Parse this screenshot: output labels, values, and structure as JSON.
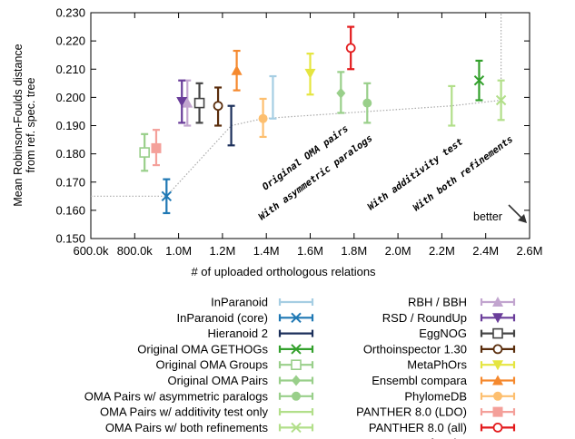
{
  "chart_data": {
    "type": "scatter",
    "title": "",
    "xlabel": "# of uploaded orthologous relations",
    "ylabel": "Mean Robinson-Foulds distance\nfrom ref. spec. tree",
    "xlim": [
      600000,
      2600000
    ],
    "ylim": [
      0.15,
      0.23
    ],
    "x_ticks": [
      "600.0k",
      "800.0k",
      "1.0M",
      "1.2M",
      "1.4M",
      "1.6M",
      "1.8M",
      "2.0M",
      "2.2M",
      "2.4M",
      "2.6M"
    ],
    "y_ticks": [
      "0.150",
      "0.160",
      "0.170",
      "0.180",
      "0.190",
      "0.200",
      "0.210",
      "0.220",
      "0.230"
    ],
    "grid": false,
    "legend_placement": "below",
    "annotations": {
      "better": "better",
      "original_oma_pairs": "Original OMA pairs",
      "asymmetric_paralogs": "With asymmetric paralogs",
      "additivity_test": "With additivity test",
      "both_refinements": "With both refinements"
    },
    "series": [
      {
        "name": "InParanoid",
        "color": "#a6cee3",
        "marker": "bar",
        "points": [
          {
            "x": 1430000,
            "y": 0.2,
            "lo": 0.1925,
            "hi": 0.2075
          }
        ]
      },
      {
        "name": "InParanoid (core)",
        "color": "#1f78b4",
        "marker": "x",
        "points": [
          {
            "x": 945000,
            "y": 0.165,
            "lo": 0.159,
            "hi": 0.171
          }
        ]
      },
      {
        "name": "Hieranoid 2",
        "color": "#1b2f5a",
        "marker": "bar",
        "points": [
          {
            "x": 1240000,
            "y": 0.19,
            "lo": 0.183,
            "hi": 0.197
          }
        ]
      },
      {
        "name": "Original OMA GETHOGs",
        "color": "#33a02c",
        "marker": "x",
        "points": [
          {
            "x": 2370000,
            "y": 0.206,
            "lo": 0.199,
            "hi": 0.213
          }
        ]
      },
      {
        "name": "Original OMA Groups",
        "color": "#99cf8a",
        "marker": "open-square",
        "points": [
          {
            "x": 845000,
            "y": 0.1805,
            "lo": 0.174,
            "hi": 0.187
          }
        ]
      },
      {
        "name": "Original OMA Pairs",
        "color": "#99cf8a",
        "marker": "diamond",
        "points": [
          {
            "x": 1740000,
            "y": 0.2015,
            "lo": 0.1945,
            "hi": 0.209
          }
        ]
      },
      {
        "name": "OMA Pairs w/ asymmetric paralogs",
        "color": "#99cf8a",
        "marker": "dot",
        "points": [
          {
            "x": 1860000,
            "y": 0.198,
            "lo": 0.191,
            "hi": 0.205
          }
        ]
      },
      {
        "name": "OMA Pairs w/ additivity test only",
        "color": "#b2df8a",
        "marker": "bar",
        "points": [
          {
            "x": 2245000,
            "y": 0.197,
            "lo": 0.19,
            "hi": 0.204
          }
        ]
      },
      {
        "name": "OMA Pairs w/ both refinements",
        "color": "#b2df8a",
        "marker": "x",
        "points": [
          {
            "x": 2470000,
            "y": 0.199,
            "lo": 0.192,
            "hi": 0.206
          }
        ]
      },
      {
        "name": "RBH / BBH",
        "color": "#c2a5cf",
        "marker": "triangle-up",
        "points": [
          {
            "x": 1040000,
            "y": 0.198,
            "lo": 0.19,
            "hi": 0.206
          }
        ]
      },
      {
        "name": "RSD / RoundUp",
        "color": "#6a3d9a",
        "marker": "triangle-down",
        "points": [
          {
            "x": 1015000,
            "y": 0.1985,
            "lo": 0.191,
            "hi": 0.206
          }
        ]
      },
      {
        "name": "EggNOG",
        "color": "#444444",
        "marker": "open-square",
        "points": [
          {
            "x": 1095000,
            "y": 0.198,
            "lo": 0.191,
            "hi": 0.205
          }
        ]
      },
      {
        "name": "Orthoinspector 1.30",
        "color": "#5a2d0c",
        "marker": "open-circle",
        "points": [
          {
            "x": 1180000,
            "y": 0.197,
            "lo": 0.19,
            "hi": 0.2035
          }
        ]
      },
      {
        "name": "MetaPhOrs",
        "color": "#e5e540",
        "marker": "triangle-down",
        "points": [
          {
            "x": 1600000,
            "y": 0.2085,
            "lo": 0.201,
            "hi": 0.2155
          }
        ]
      },
      {
        "name": "Ensembl compara",
        "color": "#f5892e",
        "marker": "triangle-up",
        "points": [
          {
            "x": 1265000,
            "y": 0.2095,
            "lo": 0.2025,
            "hi": 0.2165
          }
        ]
      },
      {
        "name": "PhylomeDB",
        "color": "#fdbf6f",
        "marker": "dot",
        "points": [
          {
            "x": 1385000,
            "y": 0.1925,
            "lo": 0.186,
            "hi": 0.1995
          }
        ]
      },
      {
        "name": "PANTHER 8.0 (LDO)",
        "color": "#f4a09a",
        "marker": "square",
        "points": [
          {
            "x": 898000,
            "y": 0.182,
            "lo": 0.176,
            "hi": 0.1885
          }
        ]
      },
      {
        "name": "PANTHER 8.0 (all)",
        "color": "#e31a1c",
        "marker": "open-circle",
        "points": [
          {
            "x": 1785000,
            "y": 0.2175,
            "lo": 0.21,
            "hi": 0.225
          }
        ]
      },
      {
        "name": "pareto frontier",
        "color": "#aaaaaa",
        "marker": "dotted-line",
        "points": [
          {
            "x": 600000,
            "y": 0.165
          },
          {
            "x": 945000,
            "y": 0.165
          },
          {
            "x": 1240000,
            "y": 0.19
          },
          {
            "x": 1385000,
            "y": 0.1925
          },
          {
            "x": 2245000,
            "y": 0.197
          },
          {
            "x": 2470000,
            "y": 0.199
          },
          {
            "x": 2470000,
            "y": 0.23
          }
        ]
      }
    ]
  },
  "legend_left": [
    {
      "label": "InParanoid",
      "series": 0
    },
    {
      "label": "InParanoid (core)",
      "series": 1
    },
    {
      "label": "Hieranoid 2",
      "series": 2
    },
    {
      "label": "Original OMA GETHOGs",
      "series": 3
    },
    {
      "label": "Original OMA Groups",
      "series": 4
    },
    {
      "label": "Original OMA Pairs",
      "series": 5
    },
    {
      "label": "OMA Pairs w/ asymmetric paralogs",
      "series": 6
    },
    {
      "label": "OMA Pairs w/ additivity test only",
      "series": 7
    },
    {
      "label": "OMA Pairs w/ both refinements",
      "series": 8
    }
  ],
  "legend_right": [
    {
      "label": "RBH / BBH",
      "series": 9
    },
    {
      "label": "RSD / RoundUp",
      "series": 10
    },
    {
      "label": "EggNOG",
      "series": 11
    },
    {
      "label": "Orthoinspector 1.30",
      "series": 12
    },
    {
      "label": "MetaPhOrs",
      "series": 13
    },
    {
      "label": "Ensembl compara",
      "series": 14
    },
    {
      "label": "PhylomeDB",
      "series": 15
    },
    {
      "label": "PANTHER 8.0 (LDO)",
      "series": 16
    },
    {
      "label": "PANTHER 8.0 (all)",
      "series": 17
    },
    {
      "label": "pareto frontier",
      "series": 18
    }
  ]
}
